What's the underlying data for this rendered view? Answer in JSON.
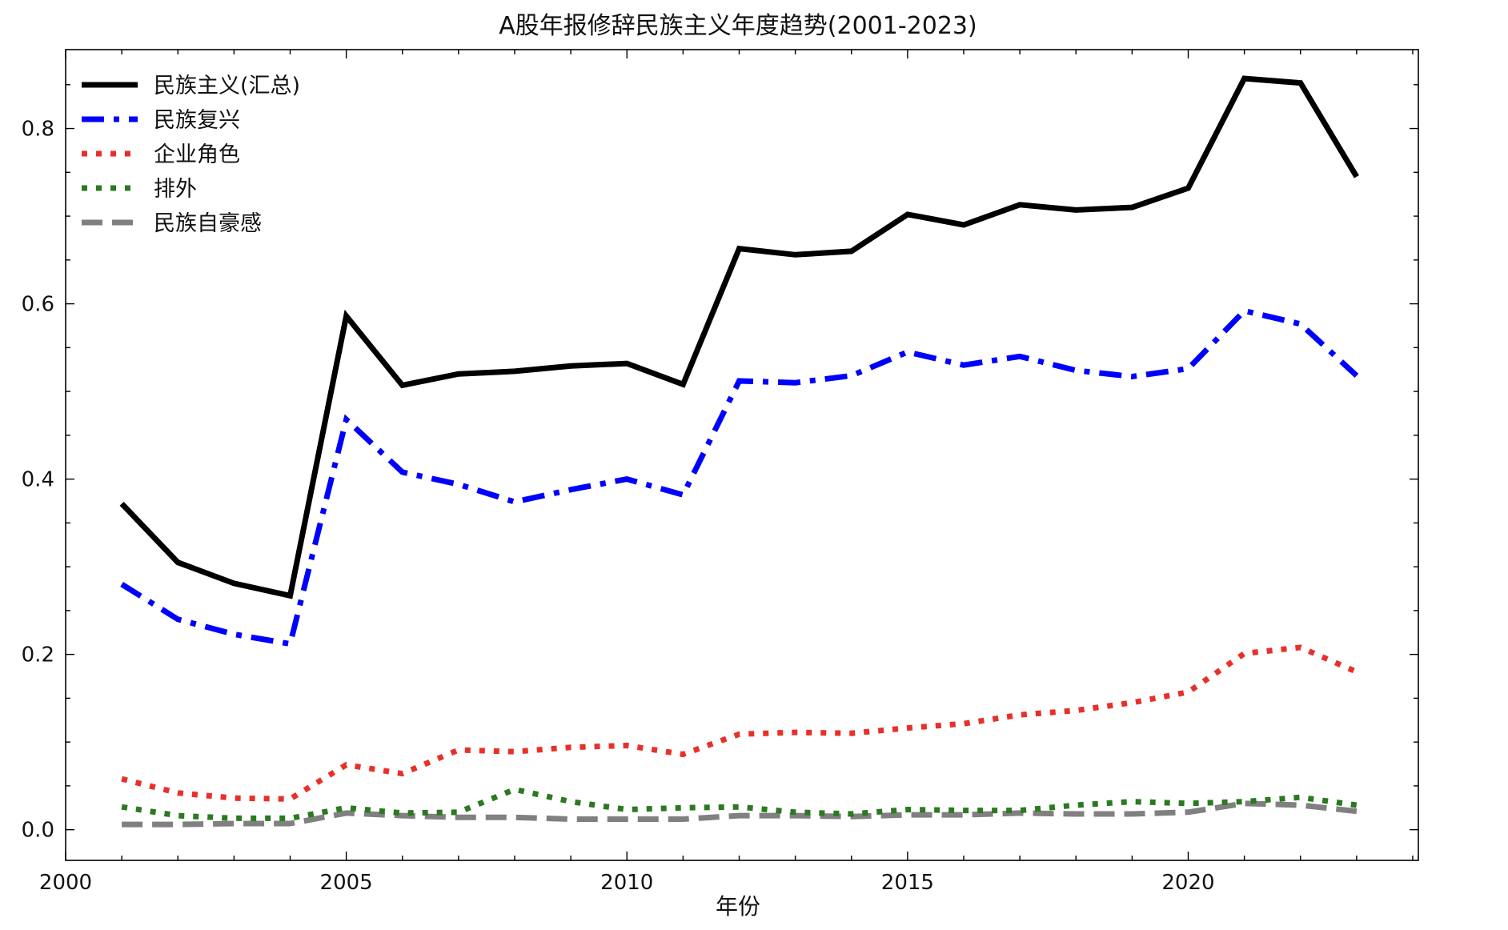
{
  "chart_data": {
    "type": "line",
    "title": "A股年报修辞民族主义年度趋势(2001-2023)",
    "xlabel": "年份",
    "ylabel": "",
    "x": [
      2001,
      2002,
      2003,
      2004,
      2005,
      2006,
      2007,
      2008,
      2009,
      2010,
      2011,
      2012,
      2013,
      2014,
      2015,
      2016,
      2017,
      2018,
      2019,
      2020,
      2021,
      2022,
      2023
    ],
    "xlim": [
      2000,
      2024.1
    ],
    "ylim": [
      -0.035,
      0.89
    ],
    "x_ticks": [
      2000,
      2005,
      2010,
      2015,
      2020
    ],
    "y_ticks": [
      0.0,
      0.2,
      0.4,
      0.6,
      0.8
    ],
    "grid": false,
    "legend_position": "top-left",
    "series": [
      {
        "name": "民族主义(汇总)",
        "color": "#000000",
        "line_style": "solid",
        "values": [
          0.372,
          0.305,
          0.281,
          0.267,
          0.586,
          0.507,
          0.52,
          0.523,
          0.529,
          0.532,
          0.508,
          0.663,
          0.656,
          0.66,
          0.702,
          0.69,
          0.713,
          0.707,
          0.71,
          0.732,
          0.857,
          0.852,
          0.745
        ]
      },
      {
        "name": "民族复兴",
        "color": "#0000ff",
        "line_style": "dashdot",
        "values": [
          0.28,
          0.24,
          0.223,
          0.212,
          0.468,
          0.408,
          0.394,
          0.374,
          0.388,
          0.4,
          0.382,
          0.512,
          0.51,
          0.518,
          0.545,
          0.53,
          0.54,
          0.524,
          0.517,
          0.526,
          0.592,
          0.577,
          0.518
        ]
      },
      {
        "name": "企业角色",
        "color": "#e8302a",
        "line_style": "dotted",
        "values": [
          0.058,
          0.042,
          0.036,
          0.035,
          0.074,
          0.064,
          0.091,
          0.089,
          0.094,
          0.096,
          0.086,
          0.109,
          0.111,
          0.11,
          0.116,
          0.121,
          0.131,
          0.136,
          0.145,
          0.157,
          0.201,
          0.208,
          0.18
        ]
      },
      {
        "name": "排外",
        "color": "#2a7a1f",
        "line_style": "dotted",
        "values": [
          0.026,
          0.016,
          0.013,
          0.013,
          0.025,
          0.019,
          0.02,
          0.046,
          0.032,
          0.023,
          0.025,
          0.026,
          0.02,
          0.018,
          0.023,
          0.022,
          0.022,
          0.028,
          0.032,
          0.03,
          0.032,
          0.037,
          0.028
        ]
      },
      {
        "name": "民族自豪感",
        "color": "#808080",
        "line_style": "dashed",
        "values": [
          0.006,
          0.006,
          0.007,
          0.007,
          0.019,
          0.016,
          0.014,
          0.014,
          0.012,
          0.012,
          0.012,
          0.016,
          0.016,
          0.015,
          0.017,
          0.017,
          0.019,
          0.018,
          0.018,
          0.02,
          0.03,
          0.028,
          0.021
        ]
      }
    ]
  }
}
